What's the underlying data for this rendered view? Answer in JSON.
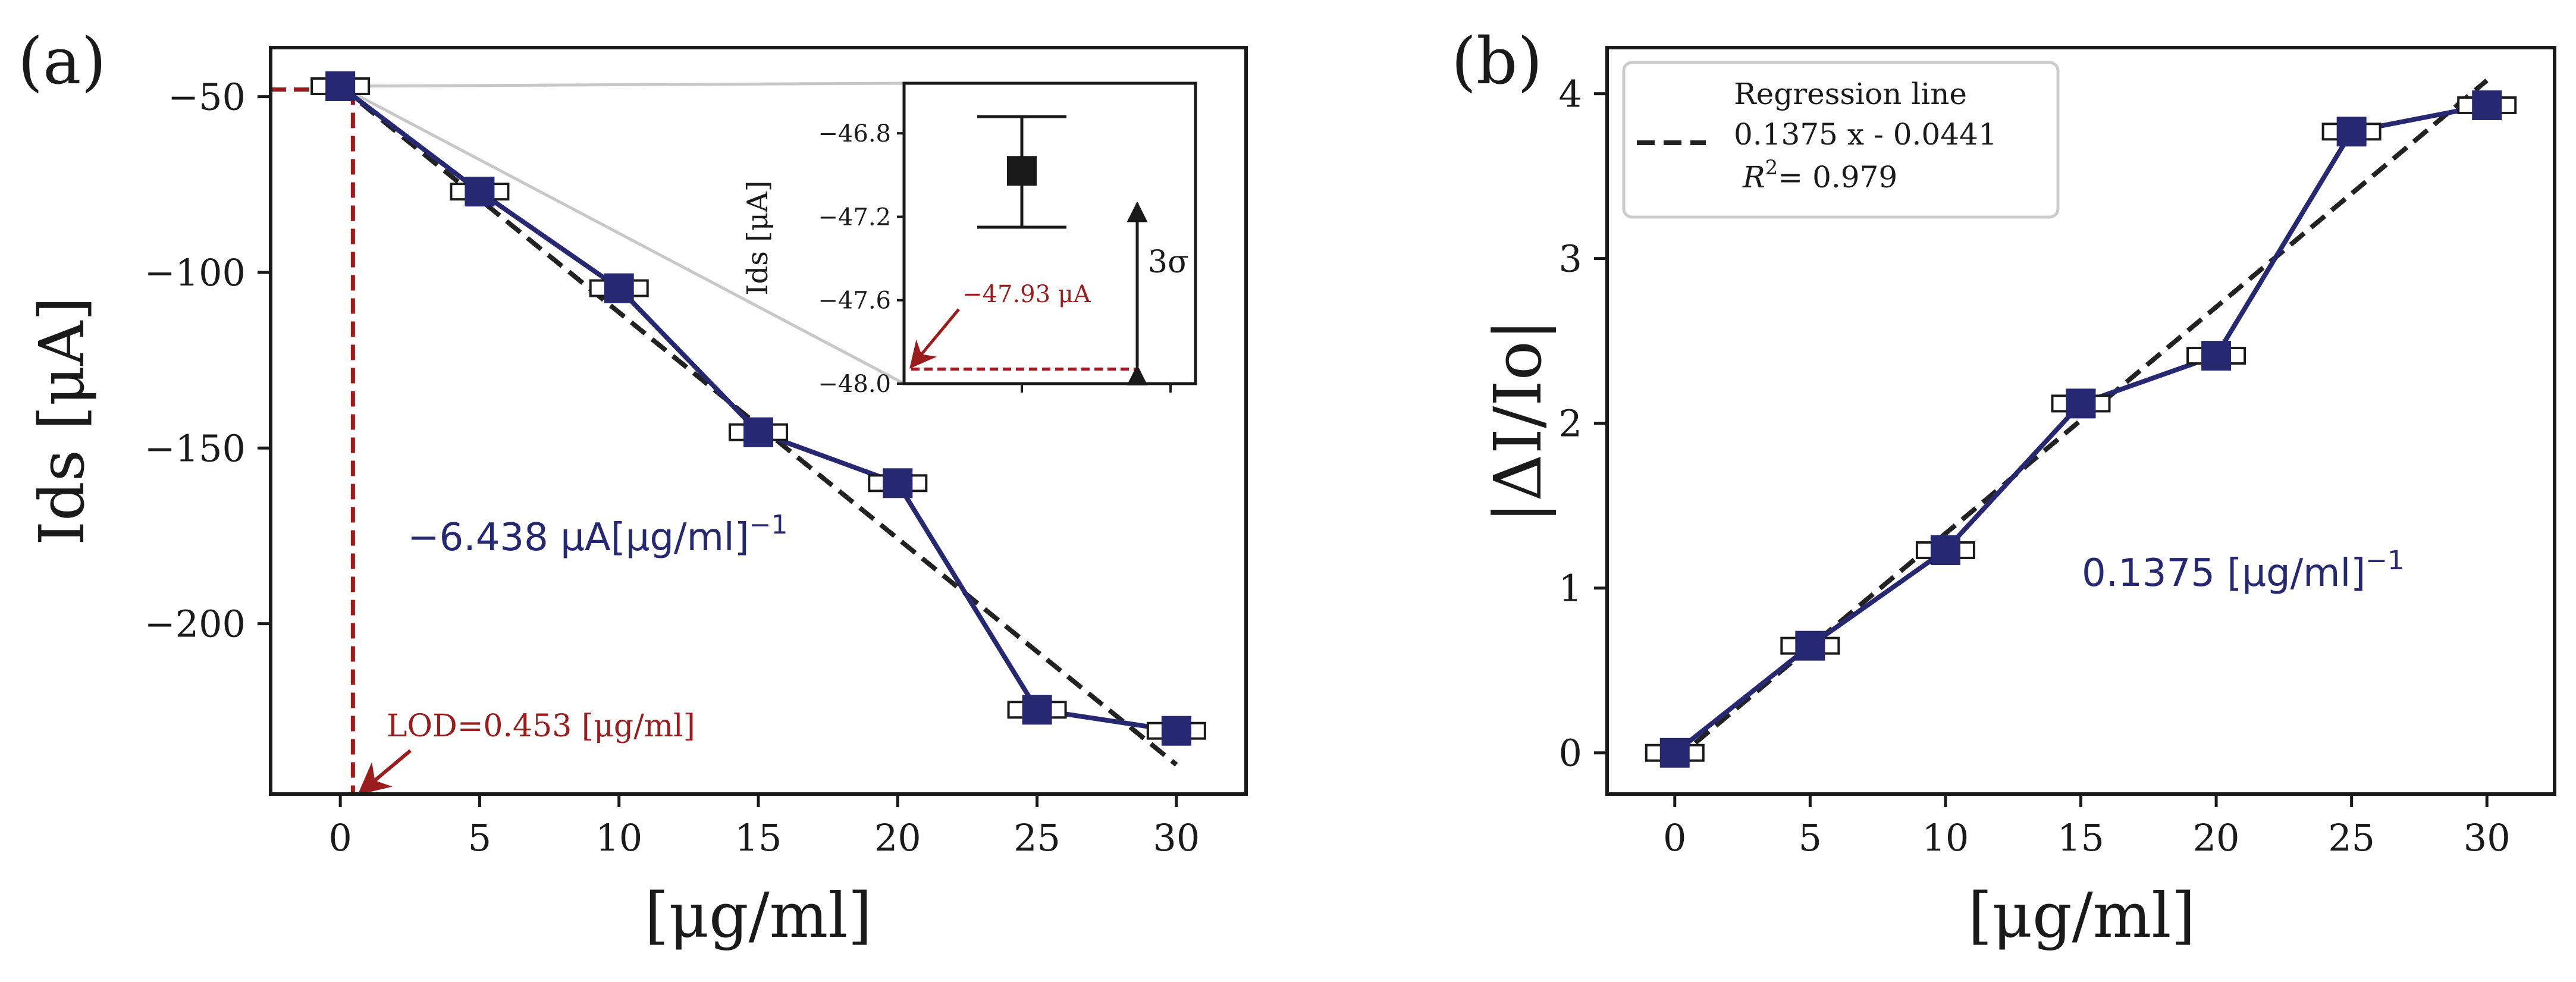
{
  "colors": {
    "series": "#262872",
    "fit": "#222222",
    "lod": "#9b1c1c",
    "zoom": "#c8c8c8",
    "axis": "#1a1a1a"
  },
  "chart_data": [
    {
      "panel_label": "(a)",
      "type": "line",
      "x": [
        0,
        5,
        10,
        15,
        20,
        25,
        30
      ],
      "series": [
        {
          "name": "Ids",
          "values": [
            -47.0,
            -77.0,
            -104.5,
            -145.5,
            -160.0,
            -224.5,
            -230.5
          ]
        }
      ],
      "regression": {
        "slope": -6.438,
        "intercept": -47.0,
        "x_range": [
          0,
          30
        ]
      },
      "sensitivity_label": "−6.438 μA[μg/ml]",
      "sensitivity_exp": "−1",
      "lod_label": "LOD=0.453 [μg/ml]",
      "lod_value": 0.453,
      "lod_level": -47.93,
      "xlabel": "[μg/ml]",
      "ylabel": "Ids [μA]",
      "xlim": [
        -2.5,
        32.5
      ],
      "ylim": [
        -248.5,
        -36.0
      ],
      "xticks": [
        0,
        5,
        10,
        15,
        20,
        25,
        30
      ],
      "xtick_labels": [
        "0",
        "5",
        "10",
        "15",
        "20",
        "25",
        "30"
      ],
      "yticks": [
        -50,
        -100,
        -150,
        -200
      ],
      "ytick_labels": [
        "−50",
        "−100",
        "−150",
        "−200"
      ],
      "inset": {
        "ylabel": "Ids [μA]",
        "ylim": [
          -48.0,
          -46.56
        ],
        "yticks": [
          -46.8,
          -47.2,
          -47.6,
          -48.0
        ],
        "ytick_labels": [
          "−46.8",
          "−47.2",
          "−47.6",
          "−48.0"
        ],
        "mean": -46.98,
        "err_low": -47.25,
        "err_high": -46.72,
        "lod_level": -47.93,
        "lod_annotation": "−47.93 μA",
        "sigma_label": "3σ"
      }
    },
    {
      "panel_label": "(b)",
      "type": "line",
      "x": [
        0,
        5,
        10,
        15,
        20,
        25,
        30
      ],
      "series": [
        {
          "name": "|ΔI/Io|",
          "values": [
            0.0,
            0.65,
            1.23,
            2.12,
            2.41,
            3.77,
            3.93
          ]
        }
      ],
      "regression": {
        "slope": 0.1375,
        "intercept": -0.0441,
        "x_range": [
          0,
          30
        ],
        "r2": 0.979
      },
      "legend": {
        "title": "Regression line",
        "equation": "0.1375 x - 0.0441",
        "r2_prefix": "R",
        "r2_exp": "2",
        "r2_value": "= 0.979",
        "placement": "top-left"
      },
      "sensitivity_label": "0.1375 [μg/ml]",
      "sensitivity_exp": "−1",
      "xlabel": "[μg/ml]",
      "ylabel": "|ΔI/Io|",
      "xlim": [
        -2.5,
        32.5
      ],
      "ylim": [
        -0.25,
        4.28
      ],
      "xticks": [
        0,
        5,
        10,
        15,
        20,
        25,
        30
      ],
      "xtick_labels": [
        "0",
        "5",
        "10",
        "15",
        "20",
        "25",
        "30"
      ],
      "yticks": [
        0,
        1,
        2,
        3,
        4
      ],
      "ytick_labels": [
        "0",
        "1",
        "2",
        "3",
        "4"
      ]
    }
  ]
}
